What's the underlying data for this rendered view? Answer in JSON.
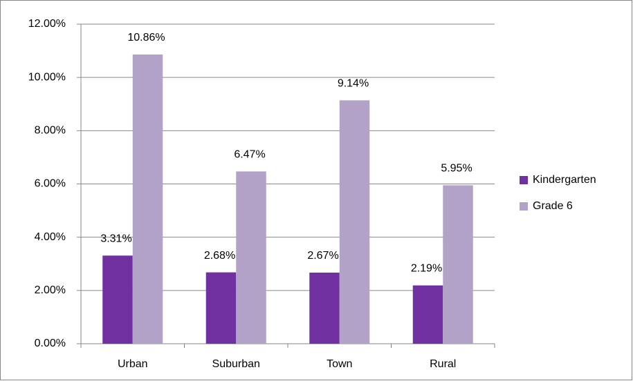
{
  "chart_data": {
    "type": "bar",
    "categories": [
      "Urban",
      "Suburban",
      "Town",
      "Rural"
    ],
    "series": [
      {
        "name": "Kindergarten",
        "color": "#7030a0",
        "values": [
          3.31,
          2.68,
          2.67,
          2.19
        ],
        "value_labels": [
          "3.31%",
          "2.68%",
          "2.67%",
          "2.19%"
        ]
      },
      {
        "name": "Grade 6",
        "color": "#b3a2c7",
        "values": [
          10.86,
          6.47,
          9.14,
          5.95
        ],
        "value_labels": [
          "10.86%",
          "6.47%",
          "9.14%",
          "5.95%"
        ]
      }
    ],
    "ylim": [
      0,
      12
    ],
    "yticks": [
      {
        "value": 0,
        "label": "0.00%"
      },
      {
        "value": 2,
        "label": "2.00%"
      },
      {
        "value": 4,
        "label": "4.00%"
      },
      {
        "value": 6,
        "label": "6.00%"
      },
      {
        "value": 8,
        "label": "8.00%"
      },
      {
        "value": 10,
        "label": "10.00%"
      },
      {
        "value": 12,
        "label": "12.00%"
      }
    ],
    "grid": true,
    "legend": "right"
  }
}
